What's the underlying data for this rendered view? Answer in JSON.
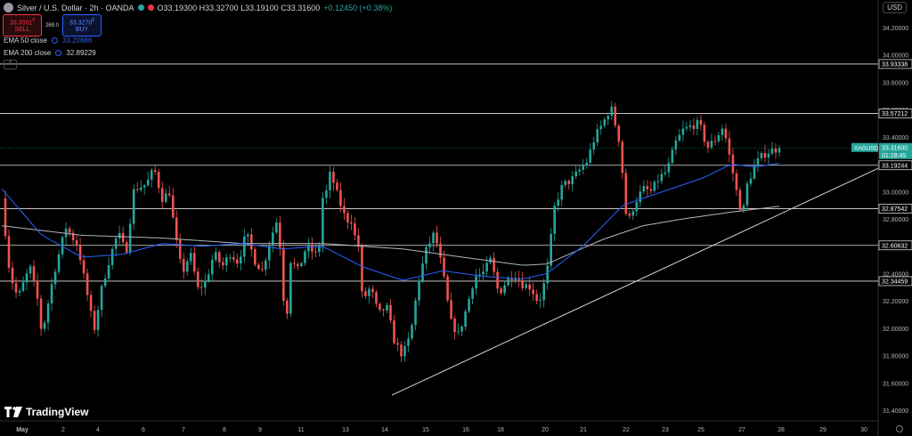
{
  "header": {
    "title": "Silver / U.S. Dollar · 2h · OANDA",
    "open": "O33.19300",
    "high": "H33.32700",
    "low": "L33.19100",
    "close": "C33.31600",
    "change": "+0.12450 (+0.38%)"
  },
  "trade": {
    "sell_price": "33.3001",
    "sell_sup": "9",
    "sell_label": "SELL",
    "spread": "269.0",
    "buy_price": "33.3270",
    "buy_sup": "8",
    "buy_label": "BUY"
  },
  "indicators": {
    "ema50_label": "EMA 50 close",
    "ema50_value": "33.20686",
    "ema200_label": "EMA 200 close",
    "ema200_value": "32.89229"
  },
  "currency": "USD",
  "brand": "TradingView",
  "colors": {
    "up": "#26a69a",
    "down": "#ef5350",
    "ema50": "#2962ff",
    "ema200": "#b2b5be",
    "level": "#e0e0e0"
  },
  "chart_data": {
    "type": "candlestick",
    "symbol_tag": "XAGUSD",
    "last_price": "33.31600",
    "countdown": "01:28:45",
    "ylim": [
      31.35,
      34.35
    ],
    "y_ticks": [
      "34.20000",
      "34.00000",
      "33.80000",
      "33.60000",
      "33.40000",
      "33.20000",
      "33.00000",
      "32.80000",
      "32.60000",
      "32.40000",
      "32.20000",
      "32.00000",
      "31.80000",
      "31.60000",
      "31.40000"
    ],
    "x_ticks": [
      "May",
      "2",
      "4",
      "6",
      "7",
      "8",
      "9",
      "11",
      "13",
      "14",
      "15",
      "16",
      "18",
      "20",
      "21",
      "22",
      "23",
      "25",
      "27",
      "28",
      "29",
      "30"
    ],
    "horizontal_levels": [
      "33.93338",
      "33.57212",
      "33.19244",
      "32.87542",
      "32.60632",
      "32.34459"
    ],
    "trendline": {
      "from": {
        "x": "14",
        "y": 31.51
      },
      "to": {
        "x": "29",
        "y": 33.17
      }
    },
    "price_path": [
      [
        0,
        32.95
      ],
      [
        0.02,
        32.4
      ],
      [
        0.04,
        32.22
      ],
      [
        0.07,
        32.45
      ],
      [
        0.09,
        32.2
      ],
      [
        0.1,
        31.95
      ],
      [
        0.13,
        32.4
      ],
      [
        0.16,
        32.74
      ],
      [
        0.19,
        32.6
      ],
      [
        0.21,
        32.3
      ],
      [
        0.23,
        31.98
      ],
      [
        0.25,
        32.3
      ],
      [
        0.27,
        32.52
      ],
      [
        0.29,
        32.7
      ],
      [
        0.31,
        32.55
      ],
      [
        0.33,
        33.02
      ],
      [
        0.36,
        33.05
      ],
      [
        0.38,
        33.17
      ],
      [
        0.4,
        32.95
      ],
      [
        0.42,
        33.0
      ],
      [
        0.43,
        32.72
      ],
      [
        0.45,
        32.4
      ],
      [
        0.47,
        32.55
      ],
      [
        0.49,
        32.28
      ],
      [
        0.51,
        32.35
      ],
      [
        0.53,
        32.55
      ],
      [
        0.55,
        32.45
      ],
      [
        0.57,
        32.55
      ],
      [
        0.59,
        32.48
      ],
      [
        0.61,
        32.7
      ],
      [
        0.63,
        32.5
      ],
      [
        0.65,
        32.42
      ],
      [
        0.67,
        32.65
      ],
      [
        0.69,
        32.82
      ],
      [
        0.7,
        32.3
      ],
      [
        0.71,
        32.04
      ],
      [
        0.72,
        32.5
      ],
      [
        0.74,
        32.42
      ],
      [
        0.76,
        32.6
      ],
      [
        0.78,
        32.55
      ],
      [
        0.79,
        32.52
      ],
      [
        0.8,
        32.95
      ],
      [
        0.81,
        33.0
      ],
      [
        0.82,
        33.14
      ],
      [
        0.84,
        32.95
      ],
      [
        0.86,
        32.78
      ],
      [
        0.87,
        32.82
      ],
      [
        0.88,
        32.68
      ],
      [
        0.89,
        32.6
      ],
      [
        0.9,
        32.2
      ],
      [
        0.92,
        32.3
      ],
      [
        0.94,
        32.1
      ],
      [
        0.96,
        32.16
      ],
      [
        0.98,
        31.9
      ],
      [
        1.0,
        31.8
      ],
      [
        1.02,
        31.95
      ],
      [
        1.04,
        32.35
      ],
      [
        1.06,
        32.58
      ],
      [
        1.08,
        32.7
      ],
      [
        1.1,
        32.42
      ],
      [
        1.12,
        32.05
      ],
      [
        1.14,
        31.95
      ],
      [
        1.16,
        32.15
      ],
      [
        1.18,
        32.38
      ],
      [
        1.2,
        32.4
      ],
      [
        1.22,
        32.5
      ],
      [
        1.24,
        32.25
      ],
      [
        1.26,
        32.35
      ],
      [
        1.28,
        32.4
      ],
      [
        1.3,
        32.32
      ],
      [
        1.32,
        32.3
      ],
      [
        1.34,
        32.18
      ],
      [
        1.36,
        32.4
      ],
      [
        1.38,
        32.9
      ],
      [
        1.4,
        33.05
      ],
      [
        1.42,
        33.08
      ],
      [
        1.44,
        33.15
      ],
      [
        1.46,
        33.22
      ],
      [
        1.48,
        33.4
      ],
      [
        1.5,
        33.5
      ],
      [
        1.52,
        33.62
      ],
      [
        1.54,
        33.38
      ],
      [
        1.55,
        33.1
      ],
      [
        1.56,
        32.75
      ],
      [
        1.58,
        32.92
      ],
      [
        1.6,
        33.02
      ],
      [
        1.62,
        33.0
      ],
      [
        1.64,
        33.1
      ],
      [
        1.66,
        33.15
      ],
      [
        1.68,
        33.35
      ],
      [
        1.7,
        33.45
      ],
      [
        1.72,
        33.48
      ],
      [
        1.74,
        33.5
      ],
      [
        1.76,
        33.32
      ],
      [
        1.78,
        33.38
      ],
      [
        1.8,
        33.48
      ],
      [
        1.82,
        33.2
      ],
      [
        1.83,
        33.05
      ],
      [
        1.84,
        32.9
      ],
      [
        1.85,
        32.86
      ],
      [
        1.86,
        33.05
      ],
      [
        1.88,
        33.2
      ],
      [
        1.9,
        33.27
      ],
      [
        1.92,
        33.3
      ],
      [
        1.94,
        33.316
      ]
    ],
    "ema50_path": [
      [
        0,
        33.02
      ],
      [
        0.1,
        32.68
      ],
      [
        0.2,
        32.52
      ],
      [
        0.3,
        32.54
      ],
      [
        0.4,
        32.62
      ],
      [
        0.5,
        32.6
      ],
      [
        0.6,
        32.62
      ],
      [
        0.7,
        32.58
      ],
      [
        0.8,
        32.6
      ],
      [
        0.9,
        32.45
      ],
      [
        1.0,
        32.35
      ],
      [
        1.1,
        32.42
      ],
      [
        1.2,
        32.38
      ],
      [
        1.3,
        32.36
      ],
      [
        1.36,
        32.4
      ],
      [
        1.45,
        32.6
      ],
      [
        1.55,
        32.9
      ],
      [
        1.65,
        33.0
      ],
      [
        1.75,
        33.1
      ],
      [
        1.82,
        33.2
      ],
      [
        1.88,
        33.18
      ],
      [
        1.94,
        33.207
      ]
    ],
    "ema200_path": [
      [
        0,
        32.75
      ],
      [
        0.2,
        32.68
      ],
      [
        0.4,
        32.66
      ],
      [
        0.6,
        32.62
      ],
      [
        0.8,
        32.62
      ],
      [
        1.0,
        32.58
      ],
      [
        1.2,
        32.5
      ],
      [
        1.3,
        32.46
      ],
      [
        1.36,
        32.47
      ],
      [
        1.5,
        32.65
      ],
      [
        1.6,
        32.75
      ],
      [
        1.7,
        32.8
      ],
      [
        1.82,
        32.85
      ],
      [
        1.94,
        32.892
      ]
    ]
  }
}
